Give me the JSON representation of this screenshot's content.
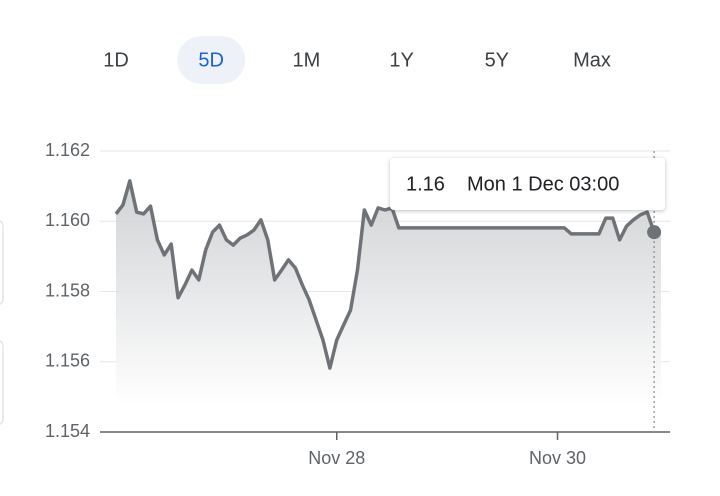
{
  "tabs": {
    "items": [
      "1D",
      "5D",
      "1M",
      "1Y",
      "5Y",
      "Max"
    ],
    "selected": 1
  },
  "chart_data": {
    "type": "line",
    "categories": [
      null,
      null,
      null,
      null,
      null,
      null,
      null,
      null,
      null,
      null,
      null,
      null,
      null,
      null,
      null,
      null,
      null,
      null,
      null,
      null,
      null,
      null,
      null,
      null,
      null,
      null,
      null,
      null,
      null,
      null,
      null,
      null,
      "Nov 28",
      null,
      null,
      null,
      null,
      null,
      null,
      null,
      null,
      null,
      null,
      null,
      null,
      null,
      null,
      null,
      null,
      null,
      null,
      null,
      null,
      null,
      null,
      null,
      null,
      null,
      null,
      null,
      null,
      null,
      null,
      null,
      "Nov 30",
      null,
      null,
      null,
      null,
      null,
      null,
      null,
      null,
      null,
      null,
      null,
      null,
      null,
      null,
      null
    ],
    "series": [
      {
        "color": "#6f7378",
        "values": [
          1.16021,
          1.16046,
          1.16115,
          1.16026,
          1.16021,
          1.16043,
          1.15947,
          1.15904,
          1.15935,
          1.15782,
          1.15819,
          1.15861,
          1.15833,
          1.15918,
          1.15969,
          1.15989,
          1.15947,
          1.15932,
          1.15952,
          1.15961,
          1.15975,
          1.16004,
          1.15947,
          1.15833,
          1.15861,
          1.1589,
          1.15867,
          1.15819,
          1.15776,
          1.15719,
          1.15662,
          1.15582,
          1.15662,
          1.15705,
          1.15747,
          1.15861,
          1.16032,
          1.15989,
          1.16038,
          1.16032,
          1.16038,
          1.15981,
          1.15981,
          1.15981,
          1.15981,
          1.15981,
          1.15981,
          1.15981,
          1.15981,
          1.15981,
          1.15981,
          1.15981,
          1.15981,
          1.15981,
          1.15981,
          1.15981,
          1.15981,
          1.15981,
          1.15981,
          1.15981,
          1.15981,
          1.15981,
          1.15981,
          1.15981,
          1.15981,
          1.15981,
          1.15964,
          1.15964,
          1.15964,
          1.15964,
          1.15964,
          1.16009,
          1.16009,
          1.15947,
          1.15986,
          1.16004,
          1.16018,
          1.16026,
          1.15969,
          1.15969
        ]
      }
    ],
    "ylim": [
      1.154,
      1.162
    ],
    "yticks": [
      1.154,
      1.156,
      1.158,
      {
        "value": 1.16,
        "label": "1.160"
      },
      1.162
    ],
    "grid": true,
    "tooltip": {
      "index": 78,
      "value": 1.16,
      "label": "Mon 1 Dec 03:00"
    }
  }
}
